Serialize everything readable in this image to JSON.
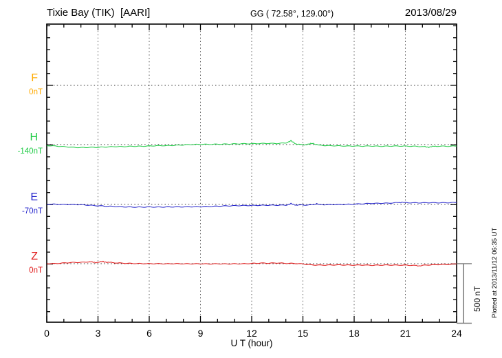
{
  "header": {
    "station": "Tixie Bay (TIK)  [AARI]",
    "coords": "GG ( 72.58°, 129.00°)",
    "date": "2013/08/29"
  },
  "xaxis": {
    "label": "U T (hour)",
    "ticks": [
      0,
      3,
      6,
      9,
      12,
      15,
      18,
      21,
      24
    ],
    "minor_tick_hours": 1,
    "min": 0,
    "max": 24
  },
  "scalebar": {
    "label": "500 nT",
    "nT": 500
  },
  "footer_note": "Plotted at 2013/11/12 06:35 UT",
  "chart_data": {
    "type": "line",
    "title": "Tixie Bay (TIK) [AARI] magnetogram 2013/08/29",
    "xlabel": "U T (hour)",
    "xlim": [
      0,
      24
    ],
    "grid": "dotted at 3-hour intervals and at channel baselines",
    "nT_per_division": 100,
    "nT_per_channel_offset": 500,
    "legend_position": "left channel labels",
    "series": [
      {
        "name": "F",
        "baseline_label": "0nT",
        "color": "#ffaa00",
        "points": []
      },
      {
        "name": "H",
        "baseline_label": "-140nT",
        "color": "#1fcb45",
        "points": [
          [
            0,
            -8
          ],
          [
            0.5,
            -12
          ],
          [
            1,
            -17
          ],
          [
            1.5,
            -23
          ],
          [
            2,
            -25
          ],
          [
            2.5,
            -23
          ],
          [
            3,
            -23
          ],
          [
            3.5,
            -20
          ],
          [
            4,
            -17
          ],
          [
            4.5,
            -17
          ],
          [
            5,
            -14
          ],
          [
            5.5,
            -14
          ],
          [
            6,
            -12
          ],
          [
            6.5,
            -9
          ],
          [
            7,
            -9
          ],
          [
            7.5,
            -6
          ],
          [
            8,
            -3
          ],
          [
            8.5,
            0
          ],
          [
            9,
            2
          ],
          [
            9.5,
            2
          ],
          [
            10,
            3
          ],
          [
            10.5,
            4
          ],
          [
            11,
            6
          ],
          [
            11.5,
            7
          ],
          [
            12,
            7
          ],
          [
            12.5,
            9
          ],
          [
            13,
            10
          ],
          [
            13.5,
            9
          ],
          [
            14,
            14
          ],
          [
            14.3,
            30
          ],
          [
            14.6,
            6
          ],
          [
            15,
            -3
          ],
          [
            15.3,
            2
          ],
          [
            15.6,
            10
          ],
          [
            15.8,
            0
          ],
          [
            16,
            -6
          ],
          [
            16.5,
            -9
          ],
          [
            17,
            -10
          ],
          [
            17.5,
            -12
          ],
          [
            18,
            -12
          ],
          [
            18.5,
            -13
          ],
          [
            19,
            -12
          ],
          [
            19.5,
            -14
          ],
          [
            20,
            -13
          ],
          [
            20.5,
            -12
          ],
          [
            21,
            -13
          ],
          [
            21.5,
            -14
          ],
          [
            22,
            -17
          ],
          [
            22.3,
            -21
          ],
          [
            22.6,
            -16
          ],
          [
            23,
            -13
          ],
          [
            23.5,
            -14
          ],
          [
            24,
            -12
          ]
        ]
      },
      {
        "name": "E",
        "baseline_label": "-70nT",
        "color": "#2626cc",
        "points": [
          [
            0,
            0
          ],
          [
            0.5,
            -1
          ],
          [
            1,
            -2
          ],
          [
            1.5,
            -3
          ],
          [
            2,
            -5
          ],
          [
            2.5,
            -9
          ],
          [
            3,
            -14
          ],
          [
            3.5,
            -17
          ],
          [
            4,
            -20
          ],
          [
            4.5,
            -23
          ],
          [
            5,
            -25
          ],
          [
            5.5,
            -25
          ],
          [
            6,
            -24
          ],
          [
            6.5,
            -25
          ],
          [
            7,
            -24
          ],
          [
            7.5,
            -23
          ],
          [
            8,
            -23
          ],
          [
            8.5,
            -22
          ],
          [
            9,
            -22
          ],
          [
            9.5,
            -20
          ],
          [
            10,
            -17
          ],
          [
            10.5,
            -15
          ],
          [
            11,
            -13
          ],
          [
            11.5,
            -12
          ],
          [
            12,
            -11
          ],
          [
            12.5,
            -10
          ],
          [
            13,
            -9
          ],
          [
            13.5,
            -9
          ],
          [
            14,
            -8
          ],
          [
            14.3,
            2
          ],
          [
            14.6,
            -7
          ],
          [
            15,
            -8
          ],
          [
            15.5,
            -7
          ],
          [
            15.8,
            4
          ],
          [
            16,
            -5
          ],
          [
            16.5,
            -4
          ],
          [
            17,
            -3
          ],
          [
            17.5,
            -2
          ],
          [
            18,
            0
          ],
          [
            18.5,
            3
          ],
          [
            19,
            6
          ],
          [
            19.5,
            7
          ],
          [
            20,
            8
          ],
          [
            20.5,
            12
          ],
          [
            20.8,
            16
          ],
          [
            21,
            12
          ],
          [
            21.5,
            11
          ],
          [
            22,
            11
          ],
          [
            22.5,
            12
          ],
          [
            23,
            11
          ],
          [
            23.5,
            12
          ],
          [
            24,
            14
          ]
        ]
      },
      {
        "name": "Z",
        "baseline_label": "0nT",
        "color": "#e01818",
        "points": [
          [
            0,
            0
          ],
          [
            0.5,
            1
          ],
          [
            1,
            6
          ],
          [
            1.5,
            10
          ],
          [
            2,
            11
          ],
          [
            2.5,
            16
          ],
          [
            2.8,
            10
          ],
          [
            3,
            12
          ],
          [
            3.3,
            17
          ],
          [
            3.6,
            12
          ],
          [
            4,
            7
          ],
          [
            4.5,
            4
          ],
          [
            5,
            2
          ],
          [
            5.5,
            1
          ],
          [
            6,
            0
          ],
          [
            6.5,
            0
          ],
          [
            7,
            -1
          ],
          [
            7.5,
            0
          ],
          [
            8,
            -1
          ],
          [
            8.5,
            -1
          ],
          [
            9,
            -1
          ],
          [
            9.5,
            -2
          ],
          [
            10,
            -1
          ],
          [
            10.5,
            -2
          ],
          [
            11,
            -1
          ],
          [
            11.5,
            -1
          ],
          [
            12,
            2
          ],
          [
            12.5,
            5
          ],
          [
            13,
            4
          ],
          [
            13.5,
            6
          ],
          [
            14,
            3
          ],
          [
            14.5,
            2
          ],
          [
            15,
            -2
          ],
          [
            15.5,
            -10
          ],
          [
            16,
            -12
          ],
          [
            16.5,
            -11
          ],
          [
            17,
            -10
          ],
          [
            17.5,
            -11
          ],
          [
            18,
            -12
          ],
          [
            18.5,
            -11
          ],
          [
            19,
            -13
          ],
          [
            19.5,
            -12
          ],
          [
            20,
            -11
          ],
          [
            20.5,
            -12
          ],
          [
            21,
            -12
          ],
          [
            21.5,
            -14
          ],
          [
            21.8,
            -18
          ],
          [
            22,
            -14
          ],
          [
            22.5,
            -9
          ],
          [
            23,
            -7
          ],
          [
            23.5,
            -6
          ],
          [
            24,
            -2
          ]
        ]
      }
    ]
  }
}
